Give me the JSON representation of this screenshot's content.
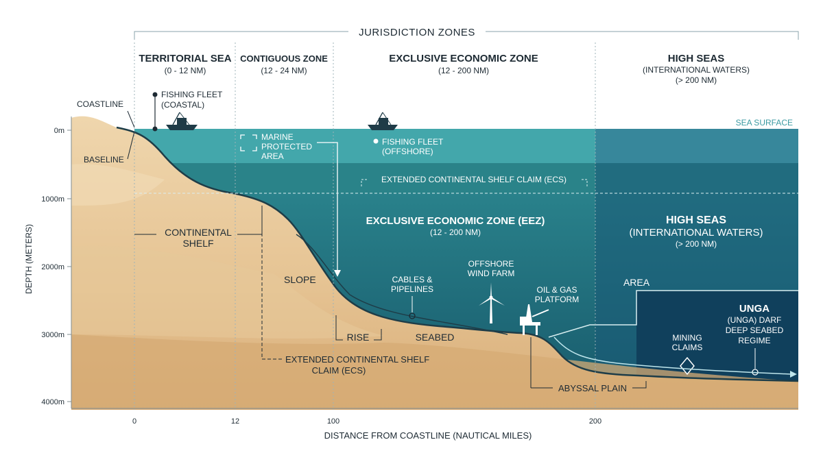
{
  "header": {
    "title": "JURISDICTION ZONES"
  },
  "zones": [
    {
      "name": "TERRITORIAL SEA",
      "range": "(0 - 12 NM)"
    },
    {
      "name": "CONTIGUOUS ZONE",
      "range": "(12 - 24 NM)"
    },
    {
      "name": "EXCLUSIVE ECONOMIC ZONE",
      "range": "(12 - 200 NM)"
    },
    {
      "name": "HIGH SEAS",
      "range": "(INTERNATIONAL WATERS)",
      "range2": "(> 200 NM)"
    }
  ],
  "labels": {
    "coastline": "COASTLINE",
    "baseline": "BASELINE",
    "fishing_coastal_1": "FISHING FLEET",
    "fishing_coastal_2": "(COASTAL)",
    "fishing_offshore_1": "FISHING FLEET",
    "fishing_offshore_2": "(OFFSHORE)",
    "mpa_1": "MARINE",
    "mpa_2": "PROTECTED",
    "mpa_3": "AREA",
    "sea_surface": "SEA SURFACE",
    "ecs_top": "EXTENDED CONTINENTAL SHELF CLAIM (ECS)",
    "continental_shelf_1": "CONTINENTAL",
    "continental_shelf_2": "SHELF",
    "slope": "SLOPE",
    "rise": "RISE",
    "seabed": "SEABED",
    "ecs_bottom_1": "EXTENDED CONTINENTAL SHELF",
    "ecs_bottom_2": "CLAIM (ECS)",
    "eez_water_1": "EXCLUSIVE ECONOMIC ZONE (EEZ)",
    "eez_water_2": "(12 - 200 NM)",
    "hs_water_1": "HIGH SEAS",
    "hs_water_2": "(INTERNATIONAL WATERS)",
    "hs_water_3": "(> 200 NM)",
    "cables_1": "CABLES &",
    "cables_2": "PIPELINES",
    "wind_1": "OFFSHORE",
    "wind_2": "WIND FARM",
    "oil_1": "OIL & GAS",
    "oil_2": "PLATFORM",
    "area": "AREA",
    "unga": "UNGA",
    "unga_1": "(UNGA) DARF",
    "unga_2": "DEEP SEABED",
    "unga_3": "REGIME",
    "mining_1": "MINING",
    "mining_2": "CLAIMS",
    "abyssal": "ABYSSAL PLAIN"
  },
  "axes": {
    "y_title": "DEPTH (METERS)",
    "y_ticks": [
      "0m",
      "1000m",
      "2000m",
      "3000m",
      "4000m"
    ],
    "x_title": "DISTANCE FROM COASTLINE (NAUTICAL MILES)",
    "x_ticks": [
      "0",
      "12",
      "100",
      "200"
    ]
  },
  "colors": {
    "sand_light": "#ebcfa3",
    "sand_mid": "#e2bf8c",
    "sand_dark": "#d9b07a",
    "water_shallow": "#3fa4a8",
    "water_mid": "#1f7580",
    "water_deep": "#154f66",
    "water_abyss": "#103f5c",
    "ink": "#1d2a33"
  }
}
